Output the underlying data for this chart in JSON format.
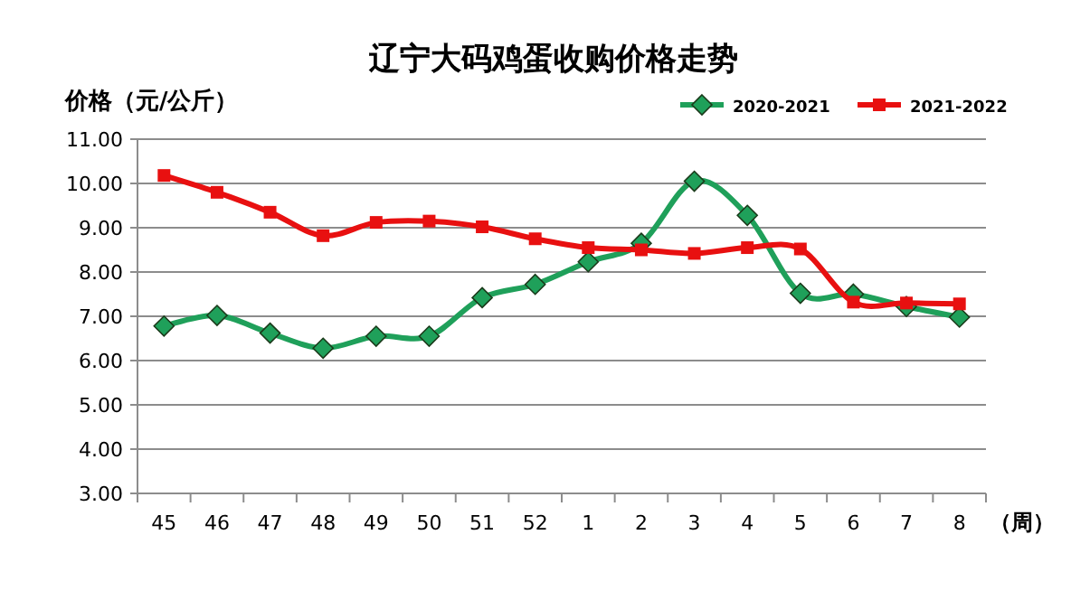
{
  "chart_data": {
    "type": "line",
    "title": "辽宁大码鸡蛋收购价格走势",
    "ylabel": "价格（元/公斤）",
    "xlabel": "（周）",
    "categories": [
      "45",
      "46",
      "47",
      "48",
      "49",
      "50",
      "51",
      "52",
      "1",
      "2",
      "3",
      "4",
      "5",
      "6",
      "7",
      "8"
    ],
    "series": [
      {
        "name": "2020-2021",
        "color": "#1fa05a",
        "marker": "diamond",
        "values": [
          6.78,
          7.02,
          6.62,
          6.28,
          6.55,
          6.55,
          7.42,
          7.72,
          8.23,
          8.65,
          10.05,
          9.28,
          7.52,
          7.5,
          7.22,
          6.98
        ]
      },
      {
        "name": "2021-2022",
        "color": "#e81010",
        "marker": "square",
        "values": [
          10.18,
          9.8,
          9.35,
          8.82,
          9.12,
          9.15,
          9.02,
          8.75,
          8.55,
          8.5,
          8.42,
          8.55,
          8.52,
          7.32,
          7.3,
          7.28
        ]
      }
    ],
    "ylim": [
      3,
      11
    ],
    "yticks": [
      {
        "value": 3,
        "label": "3.00"
      },
      {
        "value": 4,
        "label": "4.00"
      },
      {
        "value": 5,
        "label": "5.00"
      },
      {
        "value": 6,
        "label": "6.00"
      },
      {
        "value": 7,
        "label": "7.00"
      },
      {
        "value": 8,
        "label": "8.00"
      },
      {
        "value": 9,
        "label": "9.00"
      },
      {
        "value": 10,
        "label": "10.00"
      },
      {
        "value": 11,
        "label": "11.00"
      }
    ],
    "grid": "y",
    "legend": "top right"
  }
}
